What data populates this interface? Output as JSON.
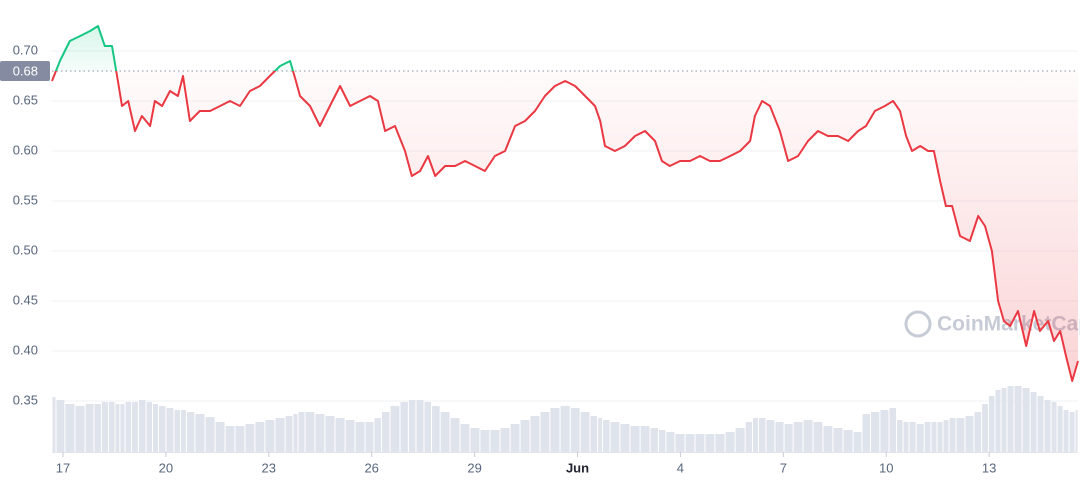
{
  "chart_data": {
    "type": "line",
    "x": [
      16.68,
      16.91,
      17.2,
      17.5,
      17.79,
      18.02,
      18.22,
      18.43,
      18.6,
      18.72,
      18.9,
      19.1,
      19.3,
      19.54,
      19.68,
      19.89,
      20.12,
      20.35,
      20.5,
      20.7,
      20.99,
      21.29,
      21.58,
      21.87,
      22.16,
      22.45,
      22.74,
      23.03,
      23.33,
      23.62,
      23.79,
      23.91,
      24.2,
      24.49,
      24.78,
      25.08,
      25.37,
      25.66,
      25.95,
      26.18,
      26.39,
      26.68,
      26.97,
      27.17,
      27.41,
      27.64,
      27.85,
      28.14,
      28.43,
      28.72,
      29.01,
      29.3,
      29.59,
      29.89,
      30.18,
      30.47,
      30.76,
      31.05,
      31.34,
      31.64,
      31.93,
      32.22,
      32.51,
      32.66,
      32.8,
      33.09,
      33.38,
      33.68,
      33.97,
      34.26,
      34.46,
      34.69,
      34.99,
      35.28,
      35.57,
      35.86,
      36.15,
      36.45,
      36.74,
      37.03,
      37.17,
      37.38,
      37.61,
      37.9,
      38.14,
      38.43,
      38.72,
      39.01,
      39.3,
      39.59,
      39.89,
      40.18,
      40.41,
      40.67,
      40.96,
      41.2,
      41.4,
      41.58,
      41.75,
      41.99,
      42.22,
      42.39,
      42.57,
      42.74,
      42.92,
      43.15,
      43.44,
      43.68,
      43.88,
      44.08,
      44.26,
      44.43,
      44.61,
      44.84,
      45.08,
      45.31,
      45.48,
      45.72,
      45.89,
      46.07,
      46.24,
      46.42,
      46.59
    ],
    "values": [
      0.67,
      0.69,
      0.71,
      0.715,
      0.72,
      0.725,
      0.705,
      0.705,
      0.67,
      0.645,
      0.65,
      0.62,
      0.635,
      0.625,
      0.65,
      0.645,
      0.66,
      0.655,
      0.675,
      0.63,
      0.64,
      0.64,
      0.645,
      0.65,
      0.645,
      0.66,
      0.665,
      0.675,
      0.685,
      0.69,
      0.67,
      0.655,
      0.645,
      0.625,
      0.645,
      0.665,
      0.645,
      0.65,
      0.655,
      0.65,
      0.62,
      0.625,
      0.6,
      0.575,
      0.58,
      0.595,
      0.575,
      0.585,
      0.585,
      0.59,
      0.585,
      0.58,
      0.595,
      0.6,
      0.625,
      0.63,
      0.64,
      0.655,
      0.665,
      0.67,
      0.665,
      0.655,
      0.645,
      0.63,
      0.605,
      0.6,
      0.605,
      0.615,
      0.62,
      0.61,
      0.59,
      0.585,
      0.59,
      0.59,
      0.595,
      0.59,
      0.59,
      0.595,
      0.6,
      0.61,
      0.635,
      0.65,
      0.645,
      0.62,
      0.59,
      0.595,
      0.61,
      0.62,
      0.615,
      0.615,
      0.61,
      0.62,
      0.625,
      0.64,
      0.645,
      0.65,
      0.64,
      0.615,
      0.6,
      0.605,
      0.6,
      0.6,
      0.57,
      0.545,
      0.545,
      0.515,
      0.51,
      0.535,
      0.525,
      0.5,
      0.45,
      0.43,
      0.425,
      0.44,
      0.405,
      0.44,
      0.42,
      0.43,
      0.41,
      0.42,
      0.395,
      0.37,
      0.39
    ],
    "volume": [
      55,
      52,
      48,
      46,
      48,
      48,
      50,
      50,
      48,
      48,
      50,
      50,
      52,
      50,
      48,
      46,
      44,
      42,
      42,
      40,
      38,
      35,
      30,
      26,
      26,
      28,
      30,
      32,
      34,
      36,
      38,
      40,
      40,
      38,
      36,
      34,
      32,
      30,
      30,
      34,
      40,
      46,
      50,
      52,
      52,
      50,
      46,
      40,
      34,
      28,
      24,
      22,
      22,
      24,
      28,
      32,
      36,
      40,
      44,
      46,
      44,
      40,
      36,
      34,
      32,
      30,
      28,
      26,
      26,
      24,
      22,
      20,
      18,
      18,
      18,
      18,
      18,
      20,
      24,
      30,
      34,
      34,
      32,
      30,
      28,
      30,
      32,
      30,
      26,
      24,
      22,
      20,
      38,
      40,
      42,
      44,
      32,
      30,
      30,
      28,
      30,
      30,
      30,
      32,
      34,
      34,
      36,
      40,
      48,
      56,
      62,
      64,
      66,
      66,
      64,
      60,
      56,
      52,
      50,
      46,
      42,
      40,
      42
    ],
    "volume_lim": [
      0,
      100
    ],
    "reference": 0.68,
    "up_color": "#16c784",
    "down_color": "#ea3943",
    "volume_color": "#dfe3ec",
    "xlim": [
      16.68,
      46.59
    ],
    "xticks": [
      17,
      20,
      23,
      26,
      29,
      {
        "value": 32,
        "label": "Jun"
      },
      {
        "value": 35,
        "label": "4"
      },
      {
        "value": 38,
        "label": "7"
      },
      {
        "value": 41,
        "label": "10"
      },
      {
        "value": 44,
        "label": "13"
      }
    ],
    "ylim": [
      0.299,
      0.751
    ],
    "yticks": [
      0.35,
      {
        "value": 0.4,
        "label": "0.40"
      },
      0.45,
      {
        "value": 0.5,
        "label": "0.50"
      },
      0.55,
      {
        "value": 0.6,
        "label": "0.60"
      },
      0.65,
      {
        "value": 0.7,
        "label": "0.70"
      }
    ],
    "grid": true,
    "watermark": "CoinMarketCap"
  }
}
